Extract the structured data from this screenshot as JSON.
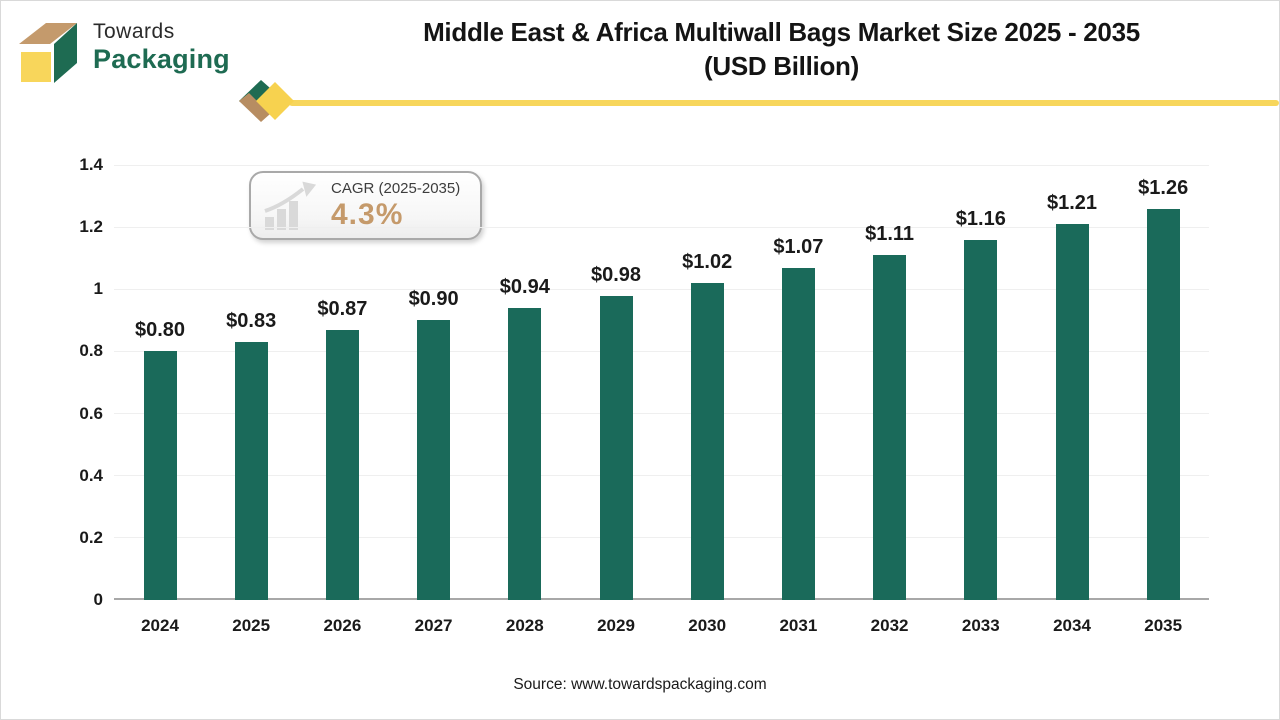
{
  "logo": {
    "line1": "Towards",
    "line2": "Packaging"
  },
  "header": {
    "title_line1": "Middle East & Africa Multiwall Bags Market Size 2025 - 2035",
    "title_line2": "(USD Billion)"
  },
  "cagr_badge": {
    "label": "CAGR (2025-2035)",
    "value": "4.3%"
  },
  "source_text": "Source: www.towardspackaging.com",
  "colors": {
    "bar": "#1A6A5A",
    "logo_green": "#1E6B52",
    "logo_tan": "#C49A6C",
    "logo_yellow": "#F8D65B",
    "ribbon_yellow": "#F7D65C",
    "cagr_value": "#C59A6B",
    "axis_line": "#a8a8a8",
    "gridline": "#efefef"
  },
  "chart_data": {
    "type": "bar",
    "title": "Middle East & Africa Multiwall Bags Market Size 2025 - 2035 (USD Billion)",
    "categories": [
      "2024",
      "2025",
      "2026",
      "2027",
      "2028",
      "2029",
      "2030",
      "2031",
      "2032",
      "2033",
      "2034",
      "2035"
    ],
    "values": [
      0.8,
      0.83,
      0.87,
      0.9,
      0.94,
      0.98,
      1.02,
      1.07,
      1.11,
      1.16,
      1.21,
      1.26
    ],
    "value_labels": [
      "$0.80",
      "$0.83",
      "$0.87",
      "$0.90",
      "$0.94",
      "$0.98",
      "$1.02",
      "$1.07",
      "$1.11",
      "$1.16",
      "$1.21",
      "$1.26"
    ],
    "unit": "USD Billion",
    "xlabel": "",
    "ylabel": "",
    "ylim": [
      0,
      1.4
    ],
    "yticks": [
      0,
      0.2,
      0.4,
      0.6,
      0.8,
      1,
      1.2,
      1.4
    ],
    "ytick_labels": [
      "0",
      "0.2",
      "0.4",
      "0.6",
      "0.8",
      "1",
      "1.2",
      "1.4"
    ],
    "grid": true,
    "legend_position": "none",
    "cagr": "4.3%",
    "cagr_period": "2025-2035"
  }
}
